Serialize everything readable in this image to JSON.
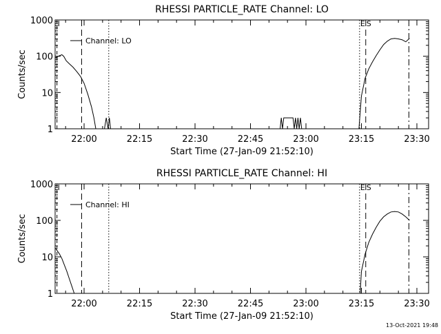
{
  "footer_timestamp": "13-Oct-2021 19:48",
  "chart_data": [
    {
      "type": "line",
      "title": "RHESSI PARTICLE_RATE Channel: LO",
      "xlabel": "Start Time (27-Jan-09 21:52:10)",
      "ylabel": "Counts/sec",
      "yscale": "log",
      "ylim": [
        1,
        1000
      ],
      "xlim": [
        "21:52:10",
        "23:33:10"
      ],
      "xticks": [
        "22:00",
        "22:15",
        "22:30",
        "22:45",
        "23:00",
        "23:15",
        "23:30"
      ],
      "yticks": [
        "1",
        "10",
        "100",
        "1000"
      ],
      "legend": {
        "position": "top-left",
        "entries": [
          "Channel: LO"
        ]
      },
      "grid": false,
      "markers": [
        {
          "label": "I",
          "time": "21:52:40",
          "style": "dashed-short"
        },
        {
          "label": "",
          "time": "21:59:20",
          "style": "dashed"
        },
        {
          "label": "",
          "time": "22:06:40",
          "style": "dotted"
        },
        {
          "label": "E",
          "time": "23:14:30",
          "style": "dotted"
        },
        {
          "label": "S",
          "time": "23:16:10",
          "style": "dashed"
        },
        {
          "label": "",
          "time": "23:27:50",
          "style": "dash-dot"
        }
      ],
      "series": [
        {
          "name": "Channel: LO",
          "segments": [
            {
              "x": [
                "21:52:10",
                "21:53:00",
                "21:54:00",
                "21:54:30",
                "21:55:10",
                "21:56:00",
                "21:57:00",
                "21:58:00",
                "21:59:00",
                "22:00:00",
                "22:01:00",
                "22:02:00",
                "22:02:40",
                "22:03:10"
              ],
              "y": [
                90,
                100,
                110,
                100,
                75,
                62,
                50,
                38,
                28,
                18,
                9,
                4,
                2,
                1
              ]
            },
            {
              "x": [
                "22:05:30",
                "22:06:00",
                "22:06:30",
                "22:06:50",
                "22:07:10"
              ],
              "y": [
                1,
                2,
                1,
                2,
                1
              ]
            },
            {
              "x": [
                "22:53:00",
                "22:53:20",
                "22:53:40",
                "22:54:00",
                "22:54:20",
                "22:56:30",
                "22:56:50",
                "22:57:10",
                "22:57:30",
                "22:57:50",
                "22:58:10",
                "22:58:30",
                "22:58:50"
              ],
              "y": [
                1,
                2,
                1,
                2,
                2,
                2,
                1,
                2,
                1,
                2,
                1,
                2,
                1
              ]
            },
            {
              "x": [
                "23:14:20",
                "23:15:00",
                "23:16:00",
                "23:17:00",
                "23:18:00",
                "23:19:00",
                "23:20:00",
                "23:21:00",
                "23:22:00",
                "23:23:00",
                "23:24:00",
                "23:25:00",
                "23:26:00",
                "23:27:00",
                "23:28:00"
              ],
              "y": [
                1,
                8,
                25,
                45,
                70,
                105,
                150,
                210,
                260,
                300,
                310,
                300,
                285,
                250,
                310
              ]
            }
          ]
        }
      ]
    },
    {
      "type": "line",
      "title": "RHESSI PARTICLE_RATE Channel: HI",
      "xlabel": "Start Time (27-Jan-09 21:52:10)",
      "ylabel": "Counts/sec",
      "yscale": "log",
      "ylim": [
        1,
        1000
      ],
      "xlim": [
        "21:52:10",
        "23:33:10"
      ],
      "xticks": [
        "22:00",
        "22:15",
        "22:30",
        "22:45",
        "23:00",
        "23:15",
        "23:30"
      ],
      "yticks": [
        "1",
        "10",
        "100",
        "1000"
      ],
      "legend": {
        "position": "top-left",
        "entries": [
          "Channel: HI"
        ]
      },
      "grid": false,
      "markers": [
        {
          "label": "I",
          "time": "21:52:40",
          "style": "dashed-short"
        },
        {
          "label": "",
          "time": "21:59:20",
          "style": "dashed"
        },
        {
          "label": "",
          "time": "22:06:40",
          "style": "dotted"
        },
        {
          "label": "E",
          "time": "23:14:30",
          "style": "dotted"
        },
        {
          "label": "S",
          "time": "23:16:10",
          "style": "dashed"
        },
        {
          "label": "",
          "time": "23:27:50",
          "style": "dash-dot"
        }
      ],
      "series": [
        {
          "name": "Channel: HI",
          "segments": [
            {
              "x": [
                "21:52:10",
                "21:52:40",
                "21:53:20",
                "21:54:00",
                "21:54:40",
                "21:55:20",
                "21:56:00",
                "21:56:40",
                "21:57:20"
              ],
              "y": [
                18,
                15,
                12,
                9,
                6,
                4,
                2.5,
                1.6,
                1
              ]
            },
            {
              "x": [
                "23:14:40",
                "23:15:00",
                "23:16:00",
                "23:17:00",
                "23:18:00",
                "23:19:00",
                "23:20:00",
                "23:21:00",
                "23:22:00",
                "23:23:00",
                "23:24:00",
                "23:25:00",
                "23:26:00",
                "23:27:00",
                "23:28:00"
              ],
              "y": [
                1,
                4,
                12,
                25,
                42,
                65,
                95,
                125,
                150,
                170,
                175,
                170,
                150,
                125,
                100
              ]
            }
          ]
        }
      ]
    }
  ]
}
